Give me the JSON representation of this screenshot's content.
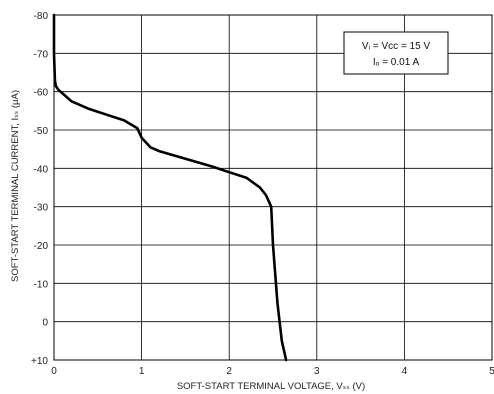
{
  "chart_data": {
    "type": "line",
    "xlabel": "SOFT-START TERMINAL VOLTAGE, Vₛₛ (V)",
    "ylabel": "SOFT-START TERMINAL CURRENT, Iₛₛ (μA)",
    "xlim": [
      0,
      5
    ],
    "ylim": [
      -80,
      10
    ],
    "x_ticks": [
      0,
      1,
      2,
      3,
      4,
      5
    ],
    "x_tick_labels": [
      "0",
      "1",
      "2",
      "3",
      "4",
      "5"
    ],
    "y_ticks": [
      -80,
      -70,
      -60,
      -50,
      -40,
      -30,
      -20,
      -10,
      0,
      10
    ],
    "y_tick_labels": [
      "-80",
      "-70",
      "-60",
      "-50",
      "-40",
      "-30",
      "-20",
      "-10",
      "0",
      "+10"
    ],
    "grid": true,
    "annotation": {
      "line1": "Vᵢ = Vᴄᴄ = 15 V",
      "line2": "Iₒ = 0.01 A"
    },
    "series": [
      {
        "x": [
          0.0,
          0.0,
          0.01,
          0.02,
          0.05,
          0.1,
          0.2,
          0.4,
          0.6,
          0.8,
          0.95,
          1.0,
          1.1,
          1.2,
          1.5,
          1.8,
          2.0,
          2.2,
          2.35,
          2.42,
          2.48,
          2.5,
          2.55,
          2.6,
          2.65
        ],
        "y": [
          -80,
          -70,
          -63,
          -61.5,
          -60.5,
          -59.5,
          -57.5,
          -55.5,
          -54,
          -52.5,
          -50.5,
          -48,
          -45.5,
          -44.5,
          -42.5,
          -40.5,
          -39,
          -37.5,
          -35,
          -33,
          -30,
          -20,
          -5,
          5,
          10
        ]
      }
    ]
  }
}
